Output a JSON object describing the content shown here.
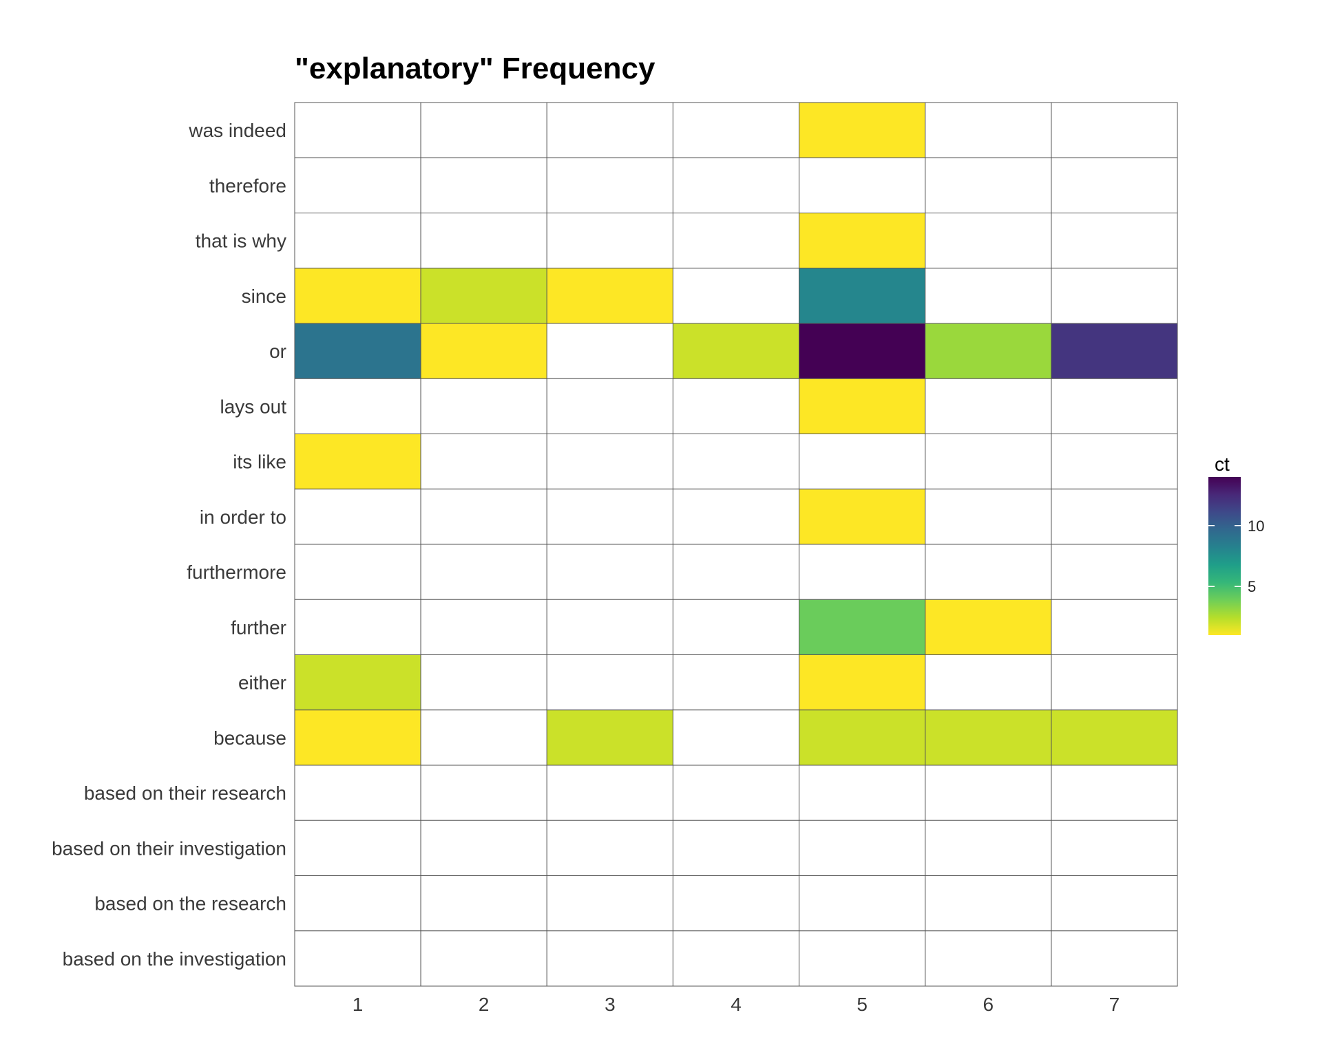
{
  "chart_data": {
    "type": "heatmap",
    "title": "\"explanatory\" Frequency",
    "xlabel": "",
    "ylabel": "",
    "x_categories": [
      "1",
      "2",
      "3",
      "4",
      "5",
      "6",
      "7"
    ],
    "y_categories": [
      "was indeed",
      "therefore",
      "that is why",
      "since",
      "or",
      "lays out",
      "its like",
      "in order to",
      "furthermore",
      "further",
      "either",
      "because",
      "based on their research",
      "based on their investigation",
      "based on the research",
      "based on the investigation"
    ],
    "values": [
      [
        null,
        null,
        null,
        null,
        1,
        null,
        null
      ],
      [
        null,
        null,
        null,
        null,
        null,
        null,
        null
      ],
      [
        null,
        null,
        null,
        null,
        1,
        null,
        null
      ],
      [
        1,
        2,
        1,
        null,
        8,
        null,
        null
      ],
      [
        9,
        1,
        null,
        2,
        14,
        3,
        12
      ],
      [
        null,
        null,
        null,
        null,
        1,
        null,
        null
      ],
      [
        1,
        null,
        null,
        null,
        null,
        null,
        null
      ],
      [
        null,
        null,
        null,
        null,
        1,
        null,
        null
      ],
      [
        null,
        null,
        null,
        null,
        null,
        null,
        null
      ],
      [
        null,
        null,
        null,
        null,
        4,
        1,
        null
      ],
      [
        2,
        null,
        null,
        null,
        1,
        null,
        null
      ],
      [
        1,
        null,
        2,
        null,
        2,
        2,
        2
      ],
      [
        null,
        null,
        null,
        null,
        null,
        null,
        null
      ],
      [
        null,
        null,
        null,
        null,
        null,
        null,
        null
      ],
      [
        null,
        null,
        null,
        null,
        null,
        null,
        null
      ],
      [
        null,
        null,
        null,
        null,
        null,
        null,
        null
      ]
    ],
    "legend": {
      "title": "ct",
      "min": 1,
      "max": 14,
      "ticks": [
        5,
        10
      ],
      "position": "right"
    },
    "colorscale": [
      "#fde725",
      "#b5de2b",
      "#6ece58",
      "#35b779",
      "#1f9e89",
      "#26828e",
      "#31688e",
      "#3e4989",
      "#482878",
      "#440154"
    ]
  }
}
